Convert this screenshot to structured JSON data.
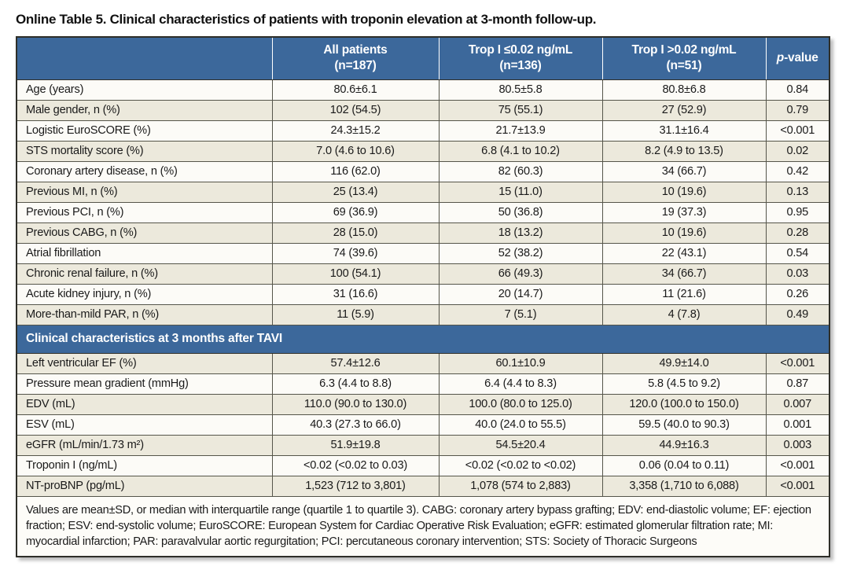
{
  "title": "Online Table 5. Clinical characteristics of patients with troponin elevation at 3-month follow-up.",
  "colors": {
    "header_blue": "#3C689B",
    "stripe_beige": "#ECE9DC",
    "stripe_white": "#FCFBF7"
  },
  "table": {
    "headers": [
      {
        "line1": "",
        "line2": ""
      },
      {
        "line1": "All patients",
        "line2": "(n=187)"
      },
      {
        "line1": "Trop I ≤0.02 ng/mL",
        "line2": "(n=136)"
      },
      {
        "line1": "Trop I >0.02 ng/mL",
        "line2": "(n=51)"
      },
      {
        "italic": "p",
        "rest": "-value"
      }
    ],
    "rows_baseline": [
      {
        "label": "Age (years)",
        "all": "80.6±6.1",
        "low": "80.5±5.8",
        "high": "80.8±6.8",
        "p": "0.84"
      },
      {
        "label": "Male gender, n (%)",
        "all": "102 (54.5)",
        "low": "75 (55.1)",
        "high": "27 (52.9)",
        "p": "0.79"
      },
      {
        "label": "Logistic EuroSCORE (%)",
        "all": "24.3±15.2",
        "low": "21.7±13.9",
        "high": "31.1±16.4",
        "p": "<0.001"
      },
      {
        "label": "STS mortality score (%)",
        "all": "7.0 (4.6 to 10.6)",
        "low": "6.8 (4.1 to 10.2)",
        "high": "8.2 (4.9 to 13.5)",
        "p": "0.02"
      },
      {
        "label": "Coronary artery disease, n (%)",
        "all": "116 (62.0)",
        "low": "82 (60.3)",
        "high": "34 (66.7)",
        "p": "0.42"
      },
      {
        "label": "Previous MI, n (%)",
        "all": "25 (13.4)",
        "low": "15 (11.0)",
        "high": "10 (19.6)",
        "p": "0.13"
      },
      {
        "label": "Previous PCI, n (%)",
        "all": "69 (36.9)",
        "low": "50 (36.8)",
        "high": "19 (37.3)",
        "p": "0.95"
      },
      {
        "label": "Previous CABG, n (%)",
        "all": "28 (15.0)",
        "low": "18 (13.2)",
        "high": "10 (19.6)",
        "p": "0.28"
      },
      {
        "label": "Atrial fibrillation",
        "all": "74 (39.6)",
        "low": "52 (38.2)",
        "high": "22 (43.1)",
        "p": "0.54"
      },
      {
        "label": "Chronic renal failure, n (%)",
        "all": "100 (54.1)",
        "low": "66 (49.3)",
        "high": "34 (66.7)",
        "p": "0.03"
      },
      {
        "label": "Acute kidney injury, n (%)",
        "all": "31 (16.6)",
        "low": "20 (14.7)",
        "high": "11 (21.6)",
        "p": "0.26"
      },
      {
        "label": "More-than-mild PAR, n (%)",
        "all": "11 (5.9)",
        "low": "7 (5.1)",
        "high": "4 (7.8)",
        "p": "0.49"
      }
    ],
    "section2_title": "Clinical characteristics at 3 months after TAVI",
    "rows_followup": [
      {
        "label": "Left ventricular EF (%)",
        "all": "57.4±12.6",
        "low": "60.1±10.9",
        "high": "49.9±14.0",
        "p": "<0.001"
      },
      {
        "label": "Pressure mean gradient (mmHg)",
        "all": "6.3 (4.4 to 8.8)",
        "low": "6.4 (4.4 to 8.3)",
        "high": "5.8 (4.5 to 9.2)",
        "p": "0.87"
      },
      {
        "label": "EDV (mL)",
        "all": "110.0 (90.0 to 130.0)",
        "low": "100.0 (80.0 to 125.0)",
        "high": "120.0 (100.0 to 150.0)",
        "p": "0.007"
      },
      {
        "label": "ESV (mL)",
        "all": "40.3 (27.3 to 66.0)",
        "low": "40.0 (24.0 to 55.5)",
        "high": "59.5 (40.0 to 90.3)",
        "p": "0.001"
      },
      {
        "label": "eGFR (mL/min/1.73 m²)",
        "all": "51.9±19.8",
        "low": "54.5±20.4",
        "high": "44.9±16.3",
        "p": "0.003"
      },
      {
        "label": "Troponin I (ng/mL)",
        "all": "<0.02 (<0.02 to 0.03)",
        "low": "<0.02 (<0.02 to <0.02)",
        "high": "0.06 (0.04 to 0.11)",
        "p": "<0.001"
      },
      {
        "label": "NT-proBNP (pg/mL)",
        "all": "1,523 (712 to 3,801)",
        "low": "1,078 (574 to 2,883)",
        "high": "3,358 (1,710 to 6,088)",
        "p": "<0.001"
      }
    ],
    "footnote": "Values are mean±SD, or median with interquartile range (quartile 1 to quartile 3). CABG: coronary artery bypass grafting; EDV: end-diastolic volume; EF: ejection fraction; ESV: end-systolic volume; EuroSCORE: European System for Cardiac Operative Risk Evaluation; eGFR: estimated glomerular filtration rate; MI: myocardial infarction; PAR: paravalvular aortic regurgitation; PCI: percutaneous coronary intervention; STS: Society of Thoracic Surgeons"
  }
}
